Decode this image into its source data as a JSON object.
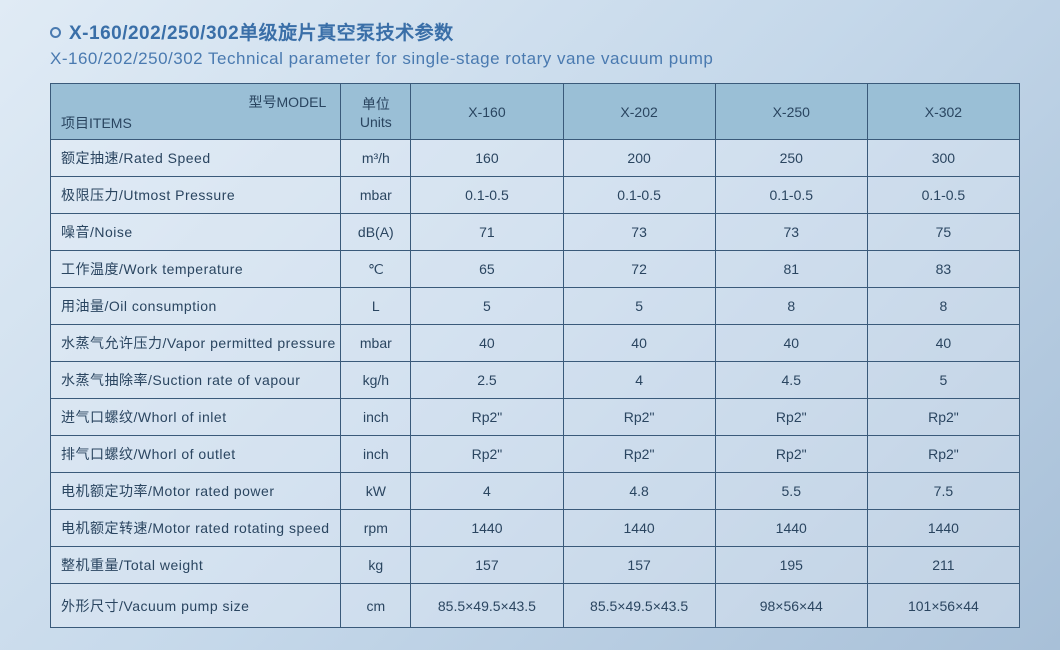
{
  "title_cn": "X-160/202/250/302单级旋片真空泵技术参数",
  "title_en": "X-160/202/250/302 Technical parameter for single-stage rotary vane vacuum pump",
  "header": {
    "model_label": "型号MODEL",
    "items_label": "项目ITEMS",
    "units_label_cn": "单位",
    "units_label_en": "Units",
    "models": [
      "X-160",
      "X-202",
      "X-250",
      "X-302"
    ]
  },
  "rows": [
    {
      "label": "额定抽速/Rated Speed",
      "unit": "m³/h",
      "v": [
        "160",
        "200",
        "250",
        "300"
      ]
    },
    {
      "label": "极限压力/Utmost Pressure",
      "unit": "mbar",
      "v": [
        "0.1-0.5",
        "0.1-0.5",
        "0.1-0.5",
        "0.1-0.5"
      ]
    },
    {
      "label": "噪音/Noise",
      "unit": "dB(A)",
      "v": [
        "71",
        "73",
        "73",
        "75"
      ]
    },
    {
      "label": "工作温度/Work temperature",
      "unit": "℃",
      "v": [
        "65",
        "72",
        "81",
        "83"
      ]
    },
    {
      "label": "用油量/Oil consumption",
      "unit": "L",
      "v": [
        "5",
        "5",
        "8",
        "8"
      ]
    },
    {
      "label": "水蒸气允许压力/Vapor permitted pressure",
      "unit": "mbar",
      "v": [
        "40",
        "40",
        "40",
        "40"
      ]
    },
    {
      "label": "水蒸气抽除率/Suction rate of vapour",
      "unit": "kg/h",
      "v": [
        "2.5",
        "4",
        "4.5",
        "5"
      ]
    },
    {
      "label": "进气口螺纹/Whorl of inlet",
      "unit": "inch",
      "v": [
        "Rp2\"",
        "Rp2\"",
        "Rp2\"",
        "Rp2\""
      ]
    },
    {
      "label": "排气口螺纹/Whorl of outlet",
      "unit": "inch",
      "v": [
        "Rp2\"",
        "Rp2\"",
        "Rp2\"",
        "Rp2\""
      ]
    },
    {
      "label": "电机额定功率/Motor rated power",
      "unit": "kW",
      "v": [
        "4",
        "4.8",
        "5.5",
        "7.5"
      ]
    },
    {
      "label": "电机额定转速/Motor rated rotating speed",
      "unit": "rpm",
      "v": [
        "1440",
        "1440",
        "1440",
        "1440"
      ]
    },
    {
      "label": "整机重量/Total weight",
      "unit": "kg",
      "v": [
        "157",
        "157",
        "195",
        "211"
      ]
    },
    {
      "label": "外形尺寸/Vacuum pump size",
      "unit": "cm",
      "v": [
        "85.5×49.5×43.5",
        "85.5×49.5×43.5",
        "98×56×44",
        "101×56×44"
      ]
    }
  ],
  "colors": {
    "header_bg": "#9abfd6",
    "border": "#3a5a7a",
    "title": "#3a6fa8",
    "text": "#2a4560"
  },
  "fontsize": {
    "title_cn": 19,
    "title_en": 17,
    "cell": 14
  }
}
